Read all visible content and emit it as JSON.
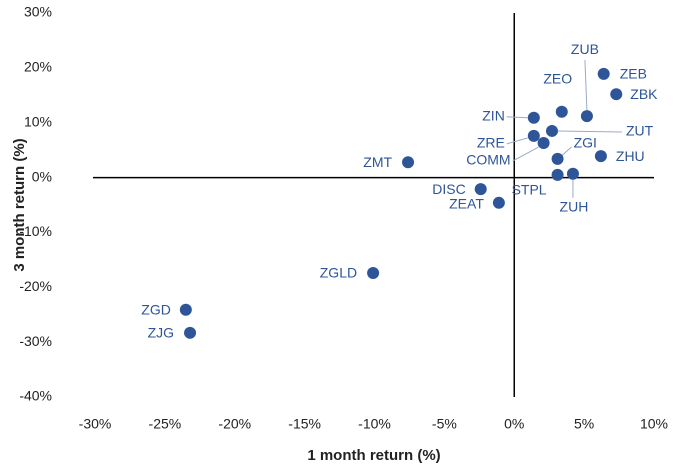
{
  "chart_data": {
    "type": "scatter",
    "xlabel": "1 month return (%)",
    "ylabel": "3 month return (%)",
    "color": "#2e5597",
    "labels": [
      "ZEB",
      "ZBK",
      "ZEO",
      "ZUB",
      "ZIN",
      "ZRE",
      "ZUT",
      "COMM",
      "ZGI",
      "ZHU",
      "STPL",
      "ZUH",
      "DISC",
      "ZEAT",
      "ZMT",
      "ZGLD",
      "ZGD",
      "ZJG"
    ],
    "x": [
      6.4,
      7.3,
      3.4,
      5.2,
      1.4,
      1.4,
      2.7,
      2.1,
      3.1,
      6.2,
      3.1,
      4.2,
      -2.4,
      -1.1,
      -7.6,
      -10.1,
      -23.5,
      -23.2
    ],
    "values": [
      18.9,
      15.2,
      12.0,
      11.2,
      10.9,
      7.6,
      8.5,
      6.3,
      3.4,
      3.9,
      0.5,
      0.7,
      -2.1,
      -4.6,
      2.8,
      -17.4,
      -24.1,
      -28.3
    ],
    "xlim": [
      -30,
      10
    ],
    "ylim": [
      -40,
      30
    ],
    "xticks": [
      {
        "value": -30,
        "label": "-30%"
      },
      {
        "value": -25,
        "label": "-25%"
      },
      {
        "value": -20,
        "label": "-20%"
      },
      {
        "value": -15,
        "label": "-15%"
      },
      {
        "value": -10,
        "label": "-10%"
      },
      {
        "value": -5,
        "label": "-5%"
      },
      {
        "value": 0,
        "label": "0%"
      },
      {
        "value": 5,
        "label": "5%"
      },
      {
        "value": 10,
        "label": "10%"
      }
    ],
    "yticks": [
      {
        "value": -40,
        "label": "-40%"
      },
      {
        "value": -30,
        "label": "-30%"
      },
      {
        "value": -20,
        "label": "-20%"
      },
      {
        "value": -10,
        "label": "-10%"
      },
      {
        "value": 0,
        "label": "0%"
      },
      {
        "value": 10,
        "label": "10%"
      },
      {
        "value": 20,
        "label": "20%"
      },
      {
        "value": 30,
        "label": "30%"
      }
    ]
  }
}
